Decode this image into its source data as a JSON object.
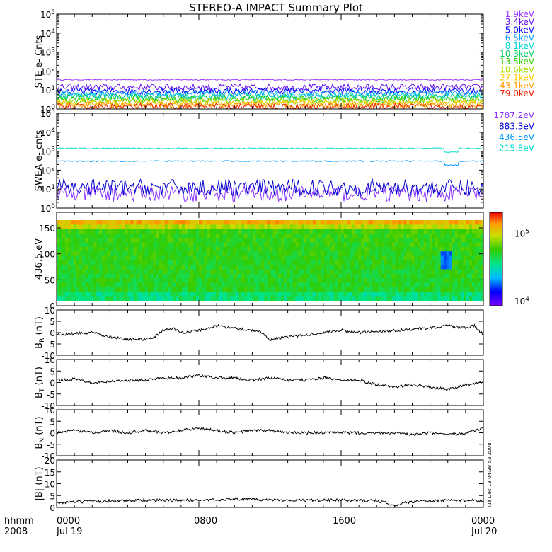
{
  "title": "STEREO-A IMPACT Summary Plot",
  "footer": {
    "time_format_label": "hhmm",
    "year_label": "2008",
    "x_ticks": [
      "0000",
      "0800",
      "1600",
      "0000"
    ],
    "x_dates": [
      "Jul 19",
      "Jul 20"
    ],
    "stamp": "Tue Dec 13 04:38:53 2008"
  },
  "chart_data": [
    {
      "type": "line",
      "panel": "ste",
      "ylabel": "STE e- Cnts",
      "yscale": "log",
      "ylim": [
        1,
        100000
      ],
      "y_ticks": [
        1,
        10,
        100,
        1000,
        10000,
        100000
      ],
      "y_tick_labels": [
        "10^0",
        "10^1",
        "10^2",
        "10^3",
        "10^4",
        "10^5"
      ],
      "series": [
        {
          "name": "1.9keV",
          "color": "#9933ff",
          "level": 35
        },
        {
          "name": "3.4keV",
          "color": "#6611ee",
          "level": 14
        },
        {
          "name": "5.0keV",
          "color": "#0000ff",
          "level": 9
        },
        {
          "name": "6.5keV",
          "color": "#0099ff",
          "level": 6.5
        },
        {
          "name": "8.1keV",
          "color": "#00d4d4",
          "level": 5
        },
        {
          "name": "10.3keV",
          "color": "#00cc66",
          "level": 4
        },
        {
          "name": "13.5keV",
          "color": "#33cc00",
          "level": 3.2
        },
        {
          "name": "18.6keV",
          "color": "#aadd00",
          "level": 2.5
        },
        {
          "name": "27.1keV",
          "color": "#ffcc00",
          "level": 2
        },
        {
          "name": "43.1keV",
          "color": "#ff9900",
          "level": 1.6
        },
        {
          "name": "79.0keV",
          "color": "#ee2200",
          "level": 1.3
        }
      ]
    },
    {
      "type": "line",
      "panel": "swea",
      "ylabel": "SWEA e- cnts",
      "yscale": "log",
      "ylim": [
        1,
        100000
      ],
      "y_ticks": [
        1,
        10,
        100,
        1000,
        10000,
        100000
      ],
      "y_tick_labels": [
        "10^0",
        "10^1",
        "10^2",
        "10^3",
        "10^4",
        "10^5"
      ],
      "series": [
        {
          "name": "1787.2eV",
          "color": "#8833ff",
          "level": 6
        },
        {
          "name": "883.3eV",
          "color": "#0000cc",
          "level": 12
        },
        {
          "name": "436.5eV",
          "color": "#0099ff",
          "level": 300
        },
        {
          "name": "215.8eV",
          "color": "#00d9cc",
          "level": 1400
        }
      ]
    },
    {
      "type": "heatmap",
      "panel": "pad",
      "ylabel": "436.5 eV",
      "ylim": [
        0,
        180
      ],
      "y_ticks": [
        0,
        50,
        100,
        150
      ],
      "data_range": [
        0,
        165
      ],
      "colorbar": {
        "scale": "log",
        "range": [
          10000,
          200000
        ],
        "tick_labels": [
          "10^4",
          "10^5"
        ],
        "tick_values": [
          10000,
          100000
        ]
      }
    },
    {
      "type": "line",
      "panel": "br",
      "ylabel": "B_R (nT)",
      "ylim": [
        -10,
        10
      ],
      "y_ticks": [
        -10,
        -5,
        0,
        5,
        10
      ],
      "series": [
        {
          "color": "#000000",
          "x": [
            0,
            1,
            2,
            3,
            4,
            4.8,
            5.5,
            6,
            6.5,
            7,
            8,
            8.5,
            9,
            10,
            11,
            11.5,
            12,
            13,
            14,
            15,
            16,
            17,
            18,
            19,
            20,
            21,
            22,
            23,
            23.5,
            24
          ],
          "y": [
            -1,
            -0.5,
            0,
            -2,
            -3,
            -3,
            -2,
            1,
            2,
            0,
            1,
            2,
            3,
            2,
            1,
            0,
            -3,
            -2,
            -1,
            0,
            1,
            0,
            0.5,
            1,
            1.5,
            2,
            3,
            2,
            3,
            -1
          ]
        }
      ]
    },
    {
      "type": "line",
      "panel": "bt",
      "ylabel": "B_T (nT)",
      "ylim": [
        -10,
        10
      ],
      "y_ticks": [
        -10,
        -5,
        0,
        5,
        10
      ],
      "series": [
        {
          "color": "#000000",
          "x": [
            0,
            1,
            2,
            3,
            4,
            5,
            6,
            7,
            8,
            9,
            10,
            11,
            12,
            13,
            14,
            15,
            16,
            17,
            18,
            19,
            20,
            21,
            22,
            23,
            24
          ],
          "y": [
            1,
            1.5,
            0,
            0.5,
            1,
            1,
            2,
            2,
            3,
            2,
            2,
            1,
            2,
            1,
            1,
            2,
            1,
            1,
            -1,
            -2,
            -1,
            -2,
            -3,
            -1,
            0
          ]
        }
      ]
    },
    {
      "type": "line",
      "panel": "bn",
      "ylabel": "B_N (nT)",
      "ylim": [
        -10,
        10
      ],
      "y_ticks": [
        -10,
        -5,
        0,
        5,
        10
      ],
      "series": [
        {
          "color": "#000000",
          "x": [
            0,
            1,
            2,
            3,
            4,
            5,
            6,
            7,
            8,
            9,
            10,
            11,
            12,
            13,
            14,
            15,
            16,
            17,
            18,
            19,
            20,
            21,
            22,
            23,
            24
          ],
          "y": [
            0,
            1,
            0,
            1,
            0,
            1,
            0,
            1,
            2,
            1,
            0,
            1,
            1,
            0,
            0,
            0,
            0,
            0,
            0,
            0,
            -1,
            0,
            -1,
            0,
            2
          ]
        }
      ]
    },
    {
      "type": "line",
      "panel": "b",
      "ylabel": "|B| (nT)",
      "ylim": [
        0,
        20
      ],
      "y_ticks": [
        0,
        5,
        10,
        15,
        20
      ],
      "series": [
        {
          "color": "#000000",
          "x": [
            0,
            2,
            4,
            6,
            8,
            10,
            12,
            14,
            16,
            18,
            19,
            20,
            22,
            24
          ],
          "y": [
            2,
            2.5,
            3,
            3,
            3,
            3.5,
            3.2,
            3,
            3,
            2.8,
            1,
            2.5,
            3,
            3
          ]
        }
      ]
    }
  ]
}
